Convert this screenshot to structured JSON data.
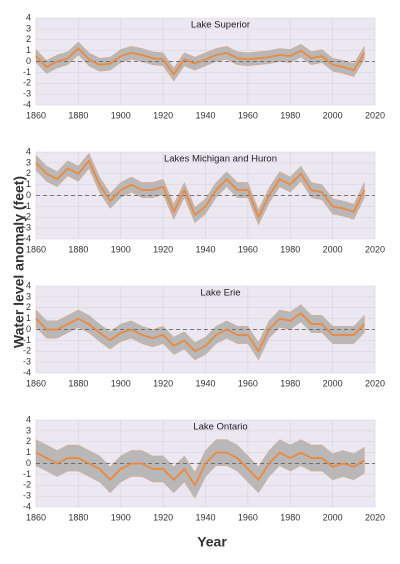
{
  "ylabel": "Water level anomaly (feet)",
  "xlabel": "Year",
  "chart_data": [
    {
      "type": "line",
      "title": "Lake Superior",
      "color": "#f0883a",
      "band_color": "#b8b8b8",
      "grid": true,
      "xlim": [
        1860,
        2020
      ],
      "ylim": [
        -4,
        4
      ],
      "xticks": [
        1860,
        1880,
        1900,
        1920,
        1940,
        1960,
        1980,
        2000,
        2020
      ],
      "yticks": [
        -4,
        -3,
        -2,
        -1,
        0,
        1,
        2,
        3,
        4
      ],
      "x": [
        1860,
        1865,
        1870,
        1875,
        1880,
        1885,
        1890,
        1895,
        1900,
        1905,
        1910,
        1915,
        1920,
        1925,
        1930,
        1935,
        1940,
        1945,
        1950,
        1955,
        1960,
        1965,
        1970,
        1975,
        1980,
        1985,
        1990,
        1995,
        2000,
        2005,
        2010,
        2015
      ],
      "values": [
        0.5,
        -0.5,
        0,
        0.3,
        1.2,
        0.2,
        -0.3,
        -0.2,
        0.5,
        0.8,
        0.6,
        0.3,
        0.2,
        -1.2,
        0.2,
        -0.2,
        0.2,
        0.6,
        0.8,
        0.3,
        0.2,
        0.3,
        0.4,
        0.6,
        0.5,
        1.0,
        0.3,
        0.5,
        -0.3,
        -0.5,
        -0.8,
        0.8
      ],
      "high": [
        1.1,
        0.1,
        0.6,
        0.9,
        1.8,
        0.8,
        0.3,
        0.4,
        1.1,
        1.4,
        1.2,
        0.9,
        0.8,
        -0.6,
        0.8,
        0.4,
        0.8,
        1.2,
        1.4,
        0.9,
        0.8,
        0.9,
        1.0,
        1.2,
        1.1,
        1.6,
        0.9,
        1.1,
        0.3,
        0.1,
        -0.2,
        1.4
      ],
      "low": [
        -0.1,
        -1.1,
        -0.6,
        -0.3,
        0.6,
        -0.4,
        -0.9,
        -0.8,
        -0.1,
        0.2,
        0,
        -0.3,
        -0.4,
        -1.8,
        -0.4,
        -0.8,
        -0.4,
        0,
        0.2,
        -0.3,
        -0.4,
        -0.3,
        -0.2,
        0,
        -0.1,
        0.4,
        -0.3,
        -0.1,
        -0.9,
        -1.1,
        -1.4,
        0.2
      ]
    },
    {
      "type": "line",
      "title": "Lakes Michigan and Huron",
      "color": "#f0883a",
      "band_color": "#b8b8b8",
      "grid": true,
      "xlim": [
        1860,
        2020
      ],
      "ylim": [
        -4,
        4
      ],
      "xticks": [
        1860,
        1880,
        1900,
        1920,
        1940,
        1960,
        1980,
        2000,
        2020
      ],
      "yticks": [
        -4,
        -3,
        -2,
        -1,
        0,
        1,
        2,
        3,
        4
      ],
      "x": [
        1860,
        1865,
        1870,
        1875,
        1880,
        1885,
        1890,
        1895,
        1900,
        1905,
        1910,
        1915,
        1920,
        1925,
        1930,
        1935,
        1940,
        1945,
        1950,
        1955,
        1960,
        1965,
        1970,
        1975,
        1980,
        1985,
        1990,
        1995,
        2000,
        2005,
        2010,
        2015
      ],
      "values": [
        3,
        2,
        1.5,
        2.5,
        2,
        3.2,
        1,
        -0.5,
        0.5,
        1,
        0.5,
        0.5,
        0.8,
        -1.5,
        0.5,
        -1.8,
        -1,
        0.5,
        1.5,
        0.5,
        0.5,
        -2,
        0,
        1.5,
        1,
        2,
        0.5,
        0.3,
        -1,
        -1.2,
        -1.5,
        0.5
      ],
      "high": [
        3.7,
        2.7,
        2.2,
        3.2,
        2.7,
        3.9,
        1.7,
        0.2,
        1.2,
        1.7,
        1.2,
        1.2,
        1.5,
        -0.8,
        1.2,
        -1.1,
        -0.3,
        1.2,
        2.2,
        1.2,
        1.2,
        -1.3,
        0.7,
        2.2,
        1.7,
        2.7,
        1.2,
        1.0,
        -0.3,
        -0.5,
        -0.8,
        1.2
      ],
      "low": [
        2.3,
        1.3,
        0.8,
        1.8,
        1.3,
        2.5,
        0.3,
        -1.2,
        -0.2,
        0.3,
        -0.2,
        -0.2,
        0.1,
        -2.2,
        -0.2,
        -2.5,
        -1.7,
        -0.2,
        0.8,
        -0.2,
        -0.2,
        -2.7,
        -0.7,
        0.8,
        0.3,
        1.3,
        -0.2,
        -0.4,
        -1.7,
        -1.9,
        -2.2,
        -0.2
      ]
    },
    {
      "type": "line",
      "title": "Lake Erie",
      "color": "#f0883a",
      "band_color": "#b8b8b8",
      "grid": true,
      "xlim": [
        1860,
        2020
      ],
      "ylim": [
        -4,
        4
      ],
      "xticks": [
        1860,
        1880,
        1900,
        1920,
        1940,
        1960,
        1980,
        2000,
        2020
      ],
      "yticks": [
        -4,
        -3,
        -2,
        -1,
        0,
        1,
        2,
        3,
        4
      ],
      "x": [
        1860,
        1865,
        1870,
        1875,
        1880,
        1885,
        1890,
        1895,
        1900,
        1905,
        1910,
        1915,
        1920,
        1925,
        1930,
        1935,
        1940,
        1945,
        1950,
        1955,
        1960,
        1965,
        1970,
        1975,
        1980,
        1985,
        1990,
        1995,
        2000,
        2005,
        2010,
        2015
      ],
      "values": [
        1,
        0,
        0,
        0.5,
        1,
        0.5,
        -0.3,
        -1,
        -0.3,
        0,
        -0.5,
        -0.8,
        -0.5,
        -1.5,
        -1,
        -2,
        -1.5,
        -0.5,
        0,
        -0.5,
        -0.5,
        -2,
        0,
        1,
        0.8,
        1.5,
        0.5,
        0.5,
        -0.5,
        -0.5,
        -0.5,
        0.5
      ],
      "high": [
        1.8,
        0.8,
        0.8,
        1.3,
        1.8,
        1.3,
        0.5,
        -0.2,
        0.5,
        0.8,
        0.3,
        0,
        0.3,
        -0.7,
        -0.2,
        -1.2,
        -0.7,
        0.3,
        0.8,
        0.3,
        0.3,
        -1.2,
        0.8,
        1.8,
        1.6,
        2.3,
        1.3,
        1.3,
        0.3,
        0.3,
        0.3,
        1.3
      ],
      "low": [
        0.2,
        -0.8,
        -0.8,
        -0.3,
        0.2,
        -0.3,
        -1.1,
        -1.8,
        -1.1,
        -0.8,
        -1.3,
        -1.6,
        -1.3,
        -2.3,
        -1.8,
        -2.8,
        -2.3,
        -1.3,
        -0.8,
        -1.3,
        -1.3,
        -2.8,
        -0.8,
        0.2,
        0,
        0.7,
        -0.3,
        -0.3,
        -1.3,
        -1.3,
        -1.3,
        -0.3
      ]
    },
    {
      "type": "line",
      "title": "Lake Ontario",
      "color": "#f0883a",
      "band_color": "#b8b8b8",
      "grid": true,
      "xlim": [
        1860,
        2020
      ],
      "ylim": [
        -4,
        4
      ],
      "xticks": [
        1860,
        1880,
        1900,
        1920,
        1940,
        1960,
        1980,
        2000,
        2020
      ],
      "yticks": [
        -4,
        -3,
        -2,
        -1,
        0,
        1,
        2,
        3,
        4
      ],
      "x": [
        1860,
        1865,
        1870,
        1875,
        1880,
        1885,
        1890,
        1895,
        1900,
        1905,
        1910,
        1915,
        1920,
        1925,
        1930,
        1935,
        1940,
        1945,
        1950,
        1955,
        1960,
        1965,
        1970,
        1975,
        1980,
        1985,
        1990,
        1995,
        2000,
        2005,
        2010,
        2015
      ],
      "values": [
        1,
        0.5,
        0,
        0.5,
        0.5,
        0,
        -0.5,
        -1.5,
        -0.5,
        0,
        0,
        -0.5,
        -0.5,
        -1.5,
        -0.5,
        -2,
        0,
        1,
        1,
        0.5,
        -0.5,
        -1.5,
        0,
        1,
        0.5,
        1,
        0.5,
        0.5,
        -0.3,
        0,
        -0.3,
        0.3
      ],
      "high": [
        2.2,
        1.7,
        1.2,
        1.7,
        1.7,
        1.2,
        0.7,
        -0.3,
        0.7,
        1.2,
        1.2,
        0.7,
        0.7,
        -0.3,
        0.7,
        -0.8,
        1.2,
        2.2,
        2.2,
        1.7,
        0.7,
        -0.3,
        1.2,
        2.2,
        1.7,
        2.2,
        1.7,
        1.7,
        0.9,
        1.2,
        0.9,
        1.5
      ],
      "low": [
        -0.2,
        -0.7,
        -1.2,
        -0.7,
        -0.7,
        -1.2,
        -1.7,
        -2.7,
        -1.7,
        -1.2,
        -1.2,
        -1.7,
        -1.7,
        -2.7,
        -1.7,
        -3.2,
        -1.2,
        -0.2,
        -0.2,
        -0.7,
        -1.7,
        -2.7,
        -1.2,
        -0.2,
        -0.7,
        -0.2,
        -0.7,
        -0.7,
        -1.5,
        -1.2,
        -1.5,
        -0.9
      ]
    }
  ]
}
